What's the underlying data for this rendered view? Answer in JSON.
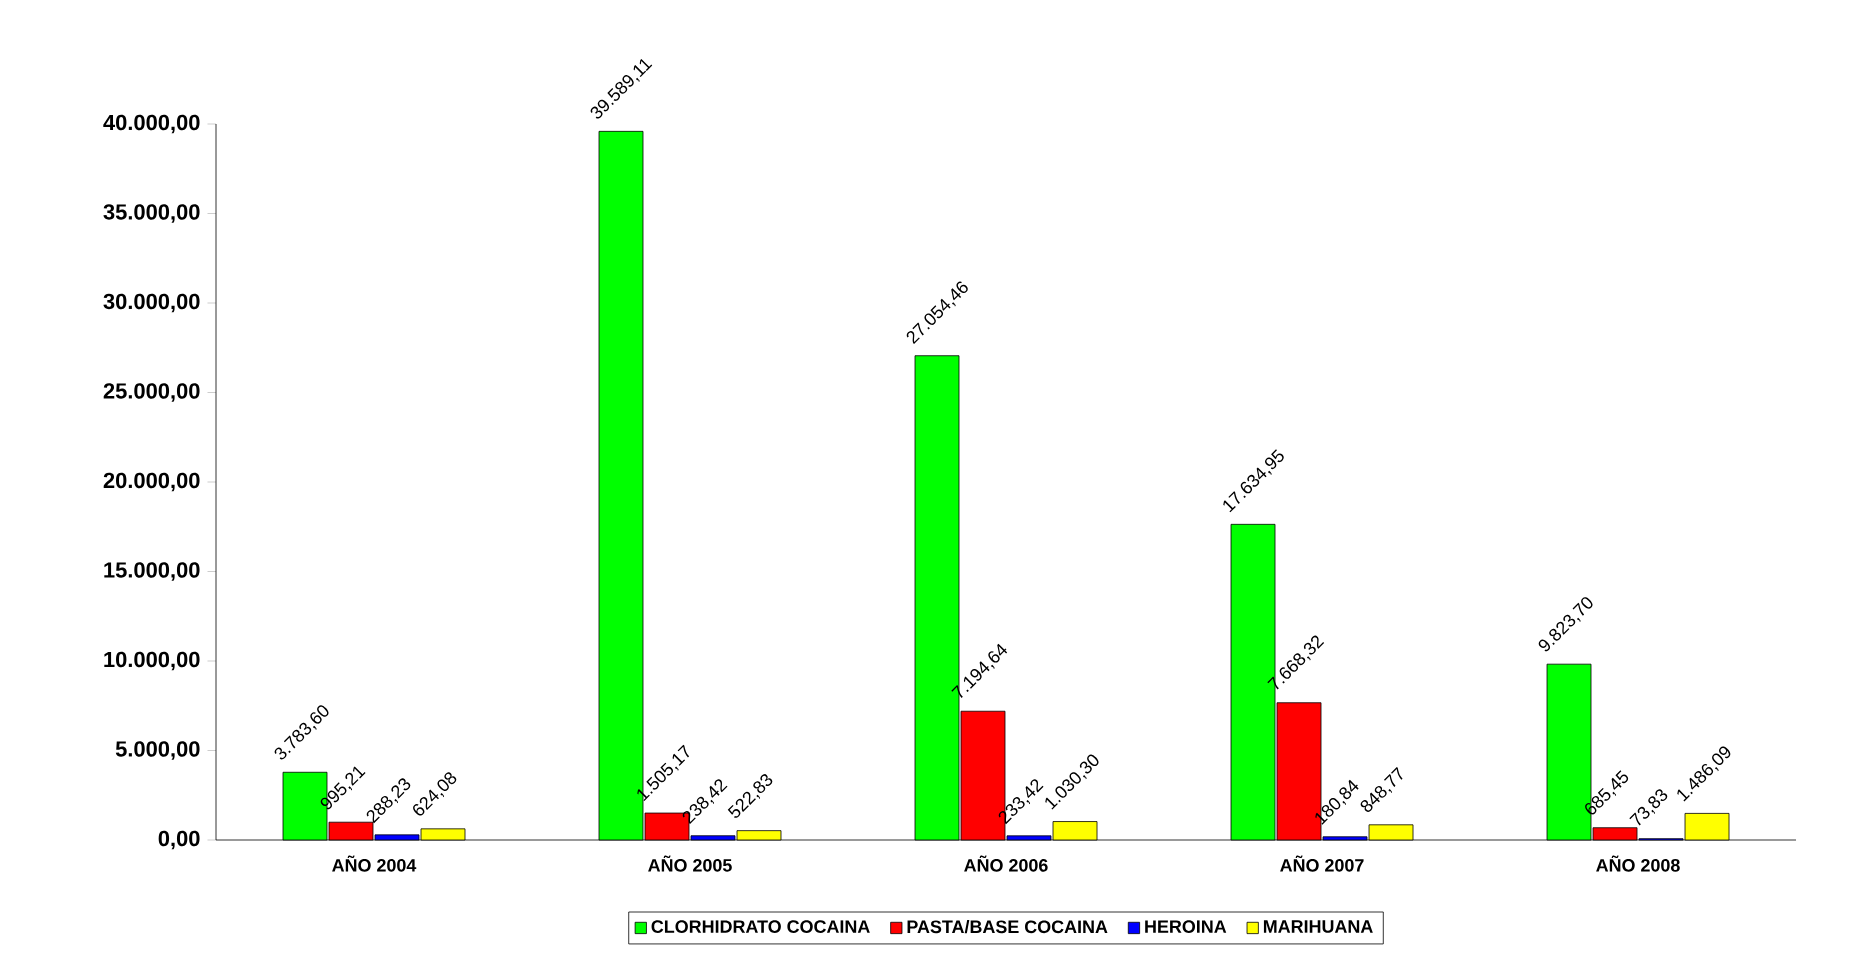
{
  "chart_data": {
    "type": "bar",
    "categories": [
      "AÑO 2004",
      "AÑO 2005",
      "AÑO 2006",
      "AÑO 2007",
      "AÑO 2008"
    ],
    "series": [
      {
        "name": "CLORHIDRATO COCAINA",
        "color": "#00ff00",
        "values": [
          3783.6,
          39589.11,
          27054.46,
          17634.95,
          9823.7
        ],
        "value_labels": [
          "3.783,60",
          "39.589,11",
          "27.054,46",
          "17.634,95",
          "9.823,70"
        ]
      },
      {
        "name": "PASTA/BASE COCAINA",
        "color": "#ff0000",
        "values": [
          995.21,
          1505.17,
          7194.64,
          7668.32,
          685.45
        ],
        "value_labels": [
          "995,21",
          "1.505,17",
          "7.194,64",
          "7.668,32",
          "685,45"
        ]
      },
      {
        "name": "HEROINA",
        "color": "#0000ff",
        "values": [
          288.23,
          238.42,
          233.42,
          180.84,
          73.83
        ],
        "value_labels": [
          "288,23",
          "238,42",
          "233,42",
          "180,84",
          "73,83"
        ]
      },
      {
        "name": "MARIHUANA",
        "color": "#ffff00",
        "values": [
          624.08,
          522.83,
          1030.3,
          848.77,
          1486.09
        ],
        "value_labels": [
          "624,08",
          "522,83",
          "1.030,30",
          "848,77",
          "1.486,09"
        ]
      }
    ],
    "ylim": [
      0,
      40000
    ],
    "yticks": [
      {
        "value": 0,
        "label": "0,00"
      },
      {
        "value": 5000,
        "label": "5.000,00"
      },
      {
        "value": 10000,
        "label": "10.000,00"
      },
      {
        "value": 15000,
        "label": "15.000,00"
      },
      {
        "value": 20000,
        "label": "20.000,00"
      },
      {
        "value": 25000,
        "label": "25.000,00"
      },
      {
        "value": 30000,
        "label": "30.000,00"
      },
      {
        "value": 35000,
        "label": "35.000,00"
      },
      {
        "value": 40000,
        "label": "40.000,00"
      }
    ],
    "legend": "bottom"
  }
}
